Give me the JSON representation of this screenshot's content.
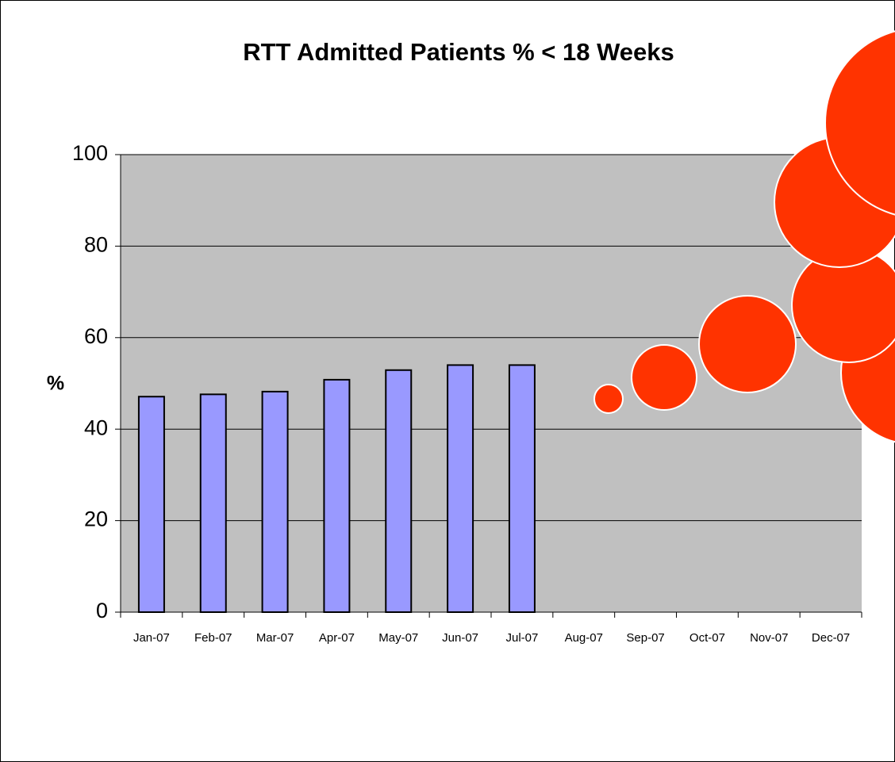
{
  "chart_data": {
    "type": "bar",
    "title": "RTT Admitted Patients % < 18 Weeks",
    "y_label": "%",
    "categories": [
      "Jan-07",
      "Feb-07",
      "Mar-07",
      "Apr-07",
      "May-07",
      "Jun-07",
      "Jul-07",
      "Aug-07",
      "Sep-07",
      "Oct-07",
      "Nov-07",
      "Dec-07"
    ],
    "values": [
      47.1,
      47.6,
      48.2,
      50.8,
      52.9,
      54,
      54,
      null,
      null,
      null,
      null,
      null
    ],
    "color": "#9999ff",
    "ylim": [
      0,
      100
    ],
    "yticks": [
      0,
      20,
      40,
      60,
      80,
      100
    ],
    "grid": true
  }
}
